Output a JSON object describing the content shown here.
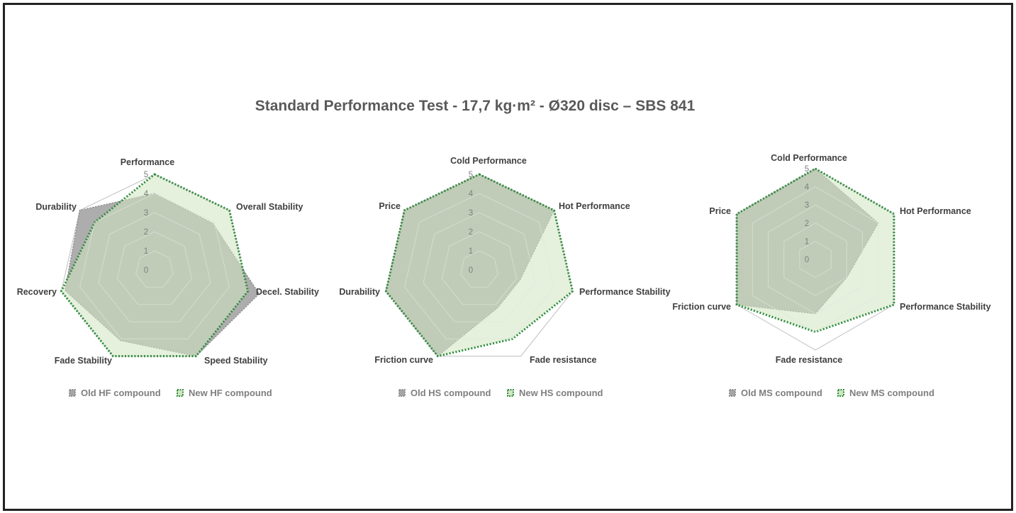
{
  "title": "Standard Performance Test - 17,7 kg·m² - Ø320 disc – SBS 841",
  "colors": {
    "old_fill": "#a6a6a6",
    "old_line": "#8c8c8c",
    "new_fill": "#cfe5c0",
    "new_line": "#2e8b3e",
    "grid": "#d9d9d9"
  },
  "chart_data": [
    {
      "type": "radar",
      "categories": [
        "Performance",
        "Overall Stability",
        "Decel. Stability",
        "Speed Stability",
        "Fade Stability",
        "Recovery",
        "Durability"
      ],
      "rlim": [
        0,
        5
      ],
      "ticks": [
        "0",
        "1",
        "2",
        "3",
        "4",
        "5"
      ],
      "series": [
        {
          "name": "Old HF compound",
          "values": [
            4.0,
            3.9,
            5.6,
            5.0,
            4.1,
            4.8,
            5.0
          ]
        },
        {
          "name": "New HF compound",
          "values": [
            5.0,
            5.0,
            5.0,
            5.0,
            5.0,
            5.0,
            4.0
          ]
        }
      ],
      "legend": "bottom"
    },
    {
      "type": "radar",
      "categories": [
        "Cold Performance",
        "Hot Performance",
        "Performance Stability",
        "Fade resistance",
        "Friction curve",
        "Durability",
        "Price"
      ],
      "rlim": [
        0,
        5
      ],
      "ticks": [
        "0",
        "1",
        "2",
        "3",
        "4",
        "5"
      ],
      "series": [
        {
          "name": "Old HS compound",
          "values": [
            5.0,
            5.0,
            2.2,
            2.2,
            5.0,
            5.0,
            5.0
          ]
        },
        {
          "name": "New HS compound",
          "values": [
            5.0,
            5.0,
            5.0,
            4.0,
            5.0,
            5.0,
            5.0
          ]
        }
      ],
      "legend": "bottom"
    },
    {
      "type": "radar",
      "categories": [
        "Cold Performance",
        "Hot Performance",
        "Performance Stability",
        "Fade resistance",
        "Friction curve",
        "Price"
      ],
      "rlim": [
        0,
        5
      ],
      "ticks": [
        "0",
        "1",
        "2",
        "3",
        "4",
        "5"
      ],
      "series": [
        {
          "name": "Old MS compound",
          "values": [
            5.0,
            4.0,
            2.0,
            3.0,
            5.0,
            5.0
          ]
        },
        {
          "name": "New MS compound",
          "values": [
            5.0,
            5.0,
            5.0,
            4.0,
            5.0,
            5.0
          ]
        }
      ],
      "legend": "bottom"
    }
  ]
}
